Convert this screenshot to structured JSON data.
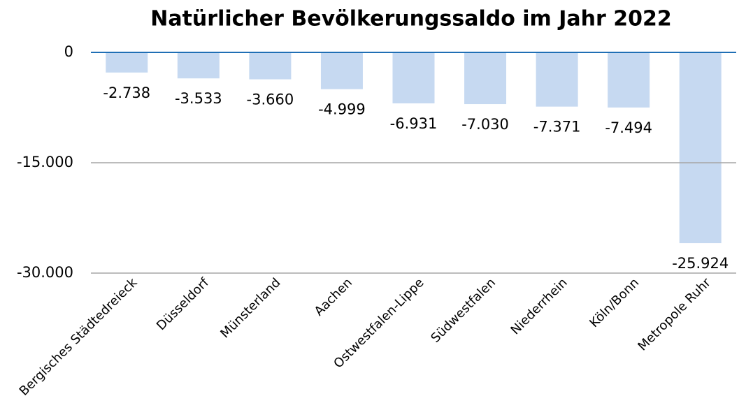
{
  "chart_data": {
    "type": "bar",
    "title": "Natürlicher Bevölkerungssaldo im Jahr 2022",
    "categories": [
      "Bergisches Städtedreieck",
      "Düsseldorf",
      "Münsterland",
      "Aachen",
      "Ostwestfalen-Lippe",
      "Südwestfalen",
      "Niederrhein",
      "Köln/Bonn",
      "Metropole Ruhr"
    ],
    "values": [
      -2738,
      -3533,
      -3660,
      -4999,
      -6931,
      -7030,
      -7371,
      -7494,
      -25924
    ],
    "value_labels": [
      "-2.738",
      "-3.533",
      "-3.660",
      "-4.999",
      "-6.931",
      "-7.030",
      "-7.371",
      "-7.494",
      "-25.924"
    ],
    "color": "#c6d9f1",
    "ylim": [
      -30000,
      0
    ],
    "yticks": [
      0,
      {
        "value": -15000,
        "label": "-15.000"
      },
      {
        "value": -30000,
        "label": "-30.000"
      }
    ],
    "grid": true
  }
}
